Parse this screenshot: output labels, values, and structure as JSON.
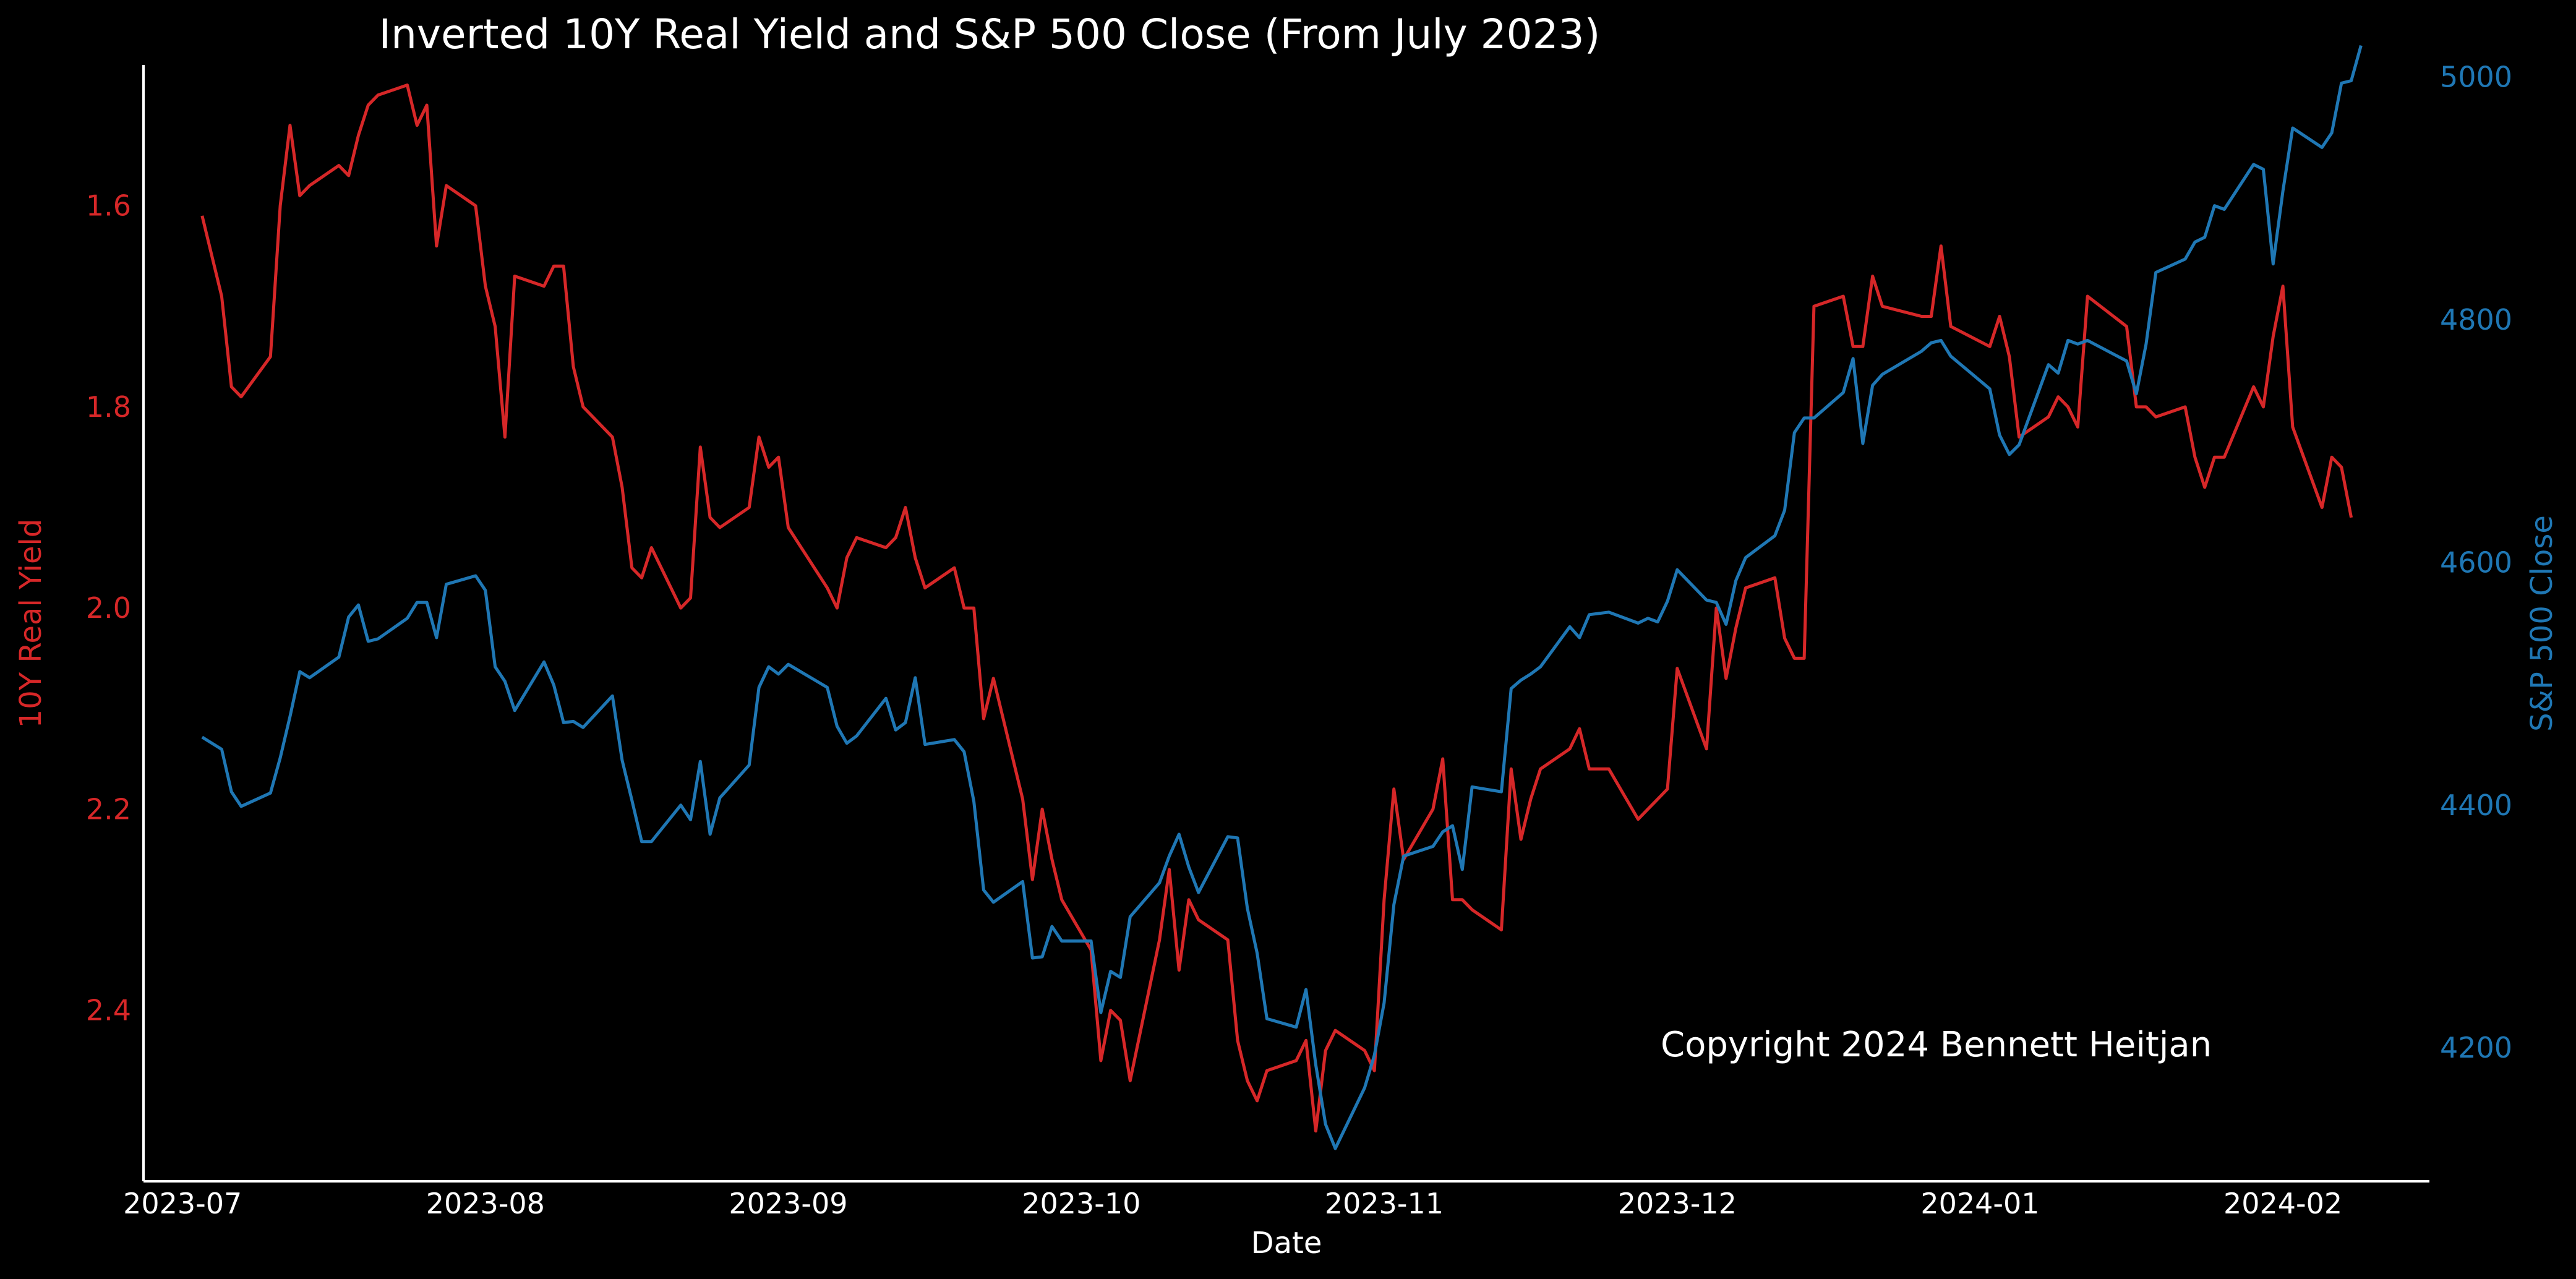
{
  "chart_data": {
    "type": "line",
    "title": "Inverted 10Y Real Yield and S&P 500 Close (From July 2023)",
    "xlabel": "Date",
    "y_left_label": "10Y Real Yield",
    "y_right_label": "S&P 500 Close",
    "annotation": "Copyright 2024 Bennett Heitjan",
    "x_range": [
      "2023-06-27",
      "2024-02-16"
    ],
    "y_left_range": [
      2.57,
      1.46
    ],
    "y_left_inverted": true,
    "y_right_range": [
      4090,
      5010
    ],
    "x_ticks": [
      "2023-07",
      "2023-08",
      "2023-09",
      "2023-10",
      "2023-11",
      "2023-12",
      "2024-01",
      "2024-02"
    ],
    "y_left_ticks": [
      "1.6",
      "1.8",
      "2.0",
      "2.2",
      "2.4"
    ],
    "y_right_ticks": [
      "4200",
      "4400",
      "4600",
      "4800",
      "5000"
    ],
    "grid": false,
    "colors": {
      "real_yield": "#d62728",
      "sp500": "#1f77b4",
      "background": "#000000",
      "text": "#ffffff"
    },
    "series": [
      {
        "name": "10Y Real Yield",
        "axis": "left",
        "x": [
          "2023-07-03",
          "2023-07-05",
          "2023-07-06",
          "2023-07-07",
          "2023-07-10",
          "2023-07-11",
          "2023-07-12",
          "2023-07-13",
          "2023-07-14",
          "2023-07-17",
          "2023-07-18",
          "2023-07-19",
          "2023-07-20",
          "2023-07-21",
          "2023-07-24",
          "2023-07-25",
          "2023-07-26",
          "2023-07-27",
          "2023-07-28",
          "2023-07-31",
          "2023-08-01",
          "2023-08-02",
          "2023-08-03",
          "2023-08-04",
          "2023-08-07",
          "2023-08-08",
          "2023-08-09",
          "2023-08-10",
          "2023-08-11",
          "2023-08-14",
          "2023-08-15",
          "2023-08-16",
          "2023-08-17",
          "2023-08-18",
          "2023-08-21",
          "2023-08-22",
          "2023-08-23",
          "2023-08-24",
          "2023-08-25",
          "2023-08-28",
          "2023-08-29",
          "2023-08-30",
          "2023-08-31",
          "2023-09-01",
          "2023-09-05",
          "2023-09-06",
          "2023-09-07",
          "2023-09-08",
          "2023-09-11",
          "2023-09-12",
          "2023-09-13",
          "2023-09-14",
          "2023-09-15",
          "2023-09-18",
          "2023-09-19",
          "2023-09-20",
          "2023-09-21",
          "2023-09-22",
          "2023-09-25",
          "2023-09-26",
          "2023-09-27",
          "2023-09-28",
          "2023-09-29",
          "2023-10-02",
          "2023-10-03",
          "2023-10-04",
          "2023-10-05",
          "2023-10-06",
          "2023-10-09",
          "2023-10-10",
          "2023-10-11",
          "2023-10-12",
          "2023-10-13",
          "2023-10-16",
          "2023-10-17",
          "2023-10-18",
          "2023-10-19",
          "2023-10-20",
          "2023-10-23",
          "2023-10-24",
          "2023-10-25",
          "2023-10-26",
          "2023-10-27",
          "2023-10-30",
          "2023-10-31",
          "2023-11-01",
          "2023-11-02",
          "2023-11-03",
          "2023-11-06",
          "2023-11-07",
          "2023-11-08",
          "2023-11-09",
          "2023-11-10",
          "2023-11-13",
          "2023-11-14",
          "2023-11-15",
          "2023-11-16",
          "2023-11-17",
          "2023-11-20",
          "2023-11-21",
          "2023-11-22",
          "2023-11-24",
          "2023-11-27",
          "2023-11-28",
          "2023-11-29",
          "2023-11-30",
          "2023-12-01",
          "2023-12-04",
          "2023-12-05",
          "2023-12-06",
          "2023-12-07",
          "2023-12-08",
          "2023-12-11",
          "2023-12-12",
          "2023-12-13",
          "2023-12-14",
          "2023-12-15",
          "2023-12-18",
          "2023-12-19",
          "2023-12-20",
          "2023-12-21",
          "2023-12-22",
          "2023-12-26",
          "2023-12-27",
          "2023-12-28",
          "2023-12-29",
          "2024-01-02",
          "2024-01-03",
          "2024-01-04",
          "2024-01-05",
          "2024-01-08",
          "2024-01-09",
          "2024-01-10",
          "2024-01-11",
          "2024-01-12",
          "2024-01-16",
          "2024-01-17",
          "2024-01-18",
          "2024-01-19",
          "2024-01-22",
          "2024-01-23",
          "2024-01-24",
          "2024-01-25",
          "2024-01-26",
          "2024-01-29",
          "2024-01-30",
          "2024-01-31",
          "2024-02-01",
          "2024-02-02",
          "2024-02-05",
          "2024-02-06",
          "2024-02-07",
          "2024-02-08"
        ],
        "values": [
          1.61,
          1.69,
          1.78,
          1.79,
          1.75,
          1.6,
          1.52,
          1.59,
          1.58,
          1.56,
          1.57,
          1.53,
          1.5,
          1.49,
          1.48,
          1.52,
          1.5,
          1.64,
          1.58,
          1.6,
          1.68,
          1.72,
          1.83,
          1.67,
          1.68,
          1.66,
          1.66,
          1.76,
          1.8,
          1.83,
          1.88,
          1.96,
          1.97,
          1.94,
          2.0,
          1.99,
          1.84,
          1.91,
          1.92,
          1.9,
          1.83,
          1.86,
          1.85,
          1.92,
          1.98,
          2.0,
          1.95,
          1.93,
          1.94,
          1.93,
          1.9,
          1.95,
          1.98,
          1.96,
          2.0,
          2.0,
          2.11,
          2.07,
          2.19,
          2.27,
          2.2,
          2.25,
          2.29,
          2.34,
          2.45,
          2.4,
          2.41,
          2.47,
          2.33,
          2.26,
          2.36,
          2.29,
          2.31,
          2.33,
          2.43,
          2.47,
          2.49,
          2.46,
          2.45,
          2.43,
          2.52,
          2.44,
          2.42,
          2.44,
          2.46,
          2.29,
          2.18,
          2.25,
          2.2,
          2.15,
          2.29,
          2.29,
          2.3,
          2.32,
          2.16,
          2.23,
          2.19,
          2.16,
          2.14,
          2.12,
          2.16,
          2.16,
          2.21,
          2.2,
          2.19,
          2.18,
          2.06,
          2.14,
          2.0,
          2.07,
          2.02,
          1.98,
          1.97,
          2.03,
          2.05,
          2.05,
          1.7,
          1.69,
          1.74,
          1.74,
          1.67,
          1.7,
          1.71,
          1.71,
          1.64,
          1.72,
          1.74,
          1.71,
          1.75,
          1.83,
          1.81,
          1.79,
          1.8,
          1.82,
          1.69,
          1.72,
          1.8,
          1.8,
          1.81,
          1.8,
          1.85,
          1.88,
          1.85,
          1.85,
          1.78,
          1.8,
          1.73,
          1.68,
          1.82,
          1.9,
          1.85,
          1.86,
          1.91
        ]
      },
      {
        "name": "S&P 500 Close",
        "axis": "right",
        "x": [
          "2023-07-03",
          "2023-07-05",
          "2023-07-06",
          "2023-07-07",
          "2023-07-10",
          "2023-07-11",
          "2023-07-12",
          "2023-07-13",
          "2023-07-14",
          "2023-07-17",
          "2023-07-18",
          "2023-07-19",
          "2023-07-20",
          "2023-07-21",
          "2023-07-24",
          "2023-07-25",
          "2023-07-26",
          "2023-07-27",
          "2023-07-28",
          "2023-07-31",
          "2023-08-01",
          "2023-08-02",
          "2023-08-03",
          "2023-08-04",
          "2023-08-07",
          "2023-08-08",
          "2023-08-09",
          "2023-08-10",
          "2023-08-11",
          "2023-08-14",
          "2023-08-15",
          "2023-08-16",
          "2023-08-17",
          "2023-08-18",
          "2023-08-21",
          "2023-08-22",
          "2023-08-23",
          "2023-08-24",
          "2023-08-25",
          "2023-08-28",
          "2023-08-29",
          "2023-08-30",
          "2023-08-31",
          "2023-09-01",
          "2023-09-05",
          "2023-09-06",
          "2023-09-07",
          "2023-09-08",
          "2023-09-11",
          "2023-09-12",
          "2023-09-13",
          "2023-09-14",
          "2023-09-15",
          "2023-09-18",
          "2023-09-19",
          "2023-09-20",
          "2023-09-21",
          "2023-09-22",
          "2023-09-25",
          "2023-09-26",
          "2023-09-27",
          "2023-09-28",
          "2023-09-29",
          "2023-10-02",
          "2023-10-03",
          "2023-10-04",
          "2023-10-05",
          "2023-10-06",
          "2023-10-09",
          "2023-10-10",
          "2023-10-11",
          "2023-10-12",
          "2023-10-13",
          "2023-10-16",
          "2023-10-17",
          "2023-10-18",
          "2023-10-19",
          "2023-10-20",
          "2023-10-23",
          "2023-10-24",
          "2023-10-25",
          "2023-10-26",
          "2023-10-27",
          "2023-10-30",
          "2023-10-31",
          "2023-11-01",
          "2023-11-02",
          "2023-11-03",
          "2023-11-06",
          "2023-11-07",
          "2023-11-08",
          "2023-11-09",
          "2023-11-10",
          "2023-11-13",
          "2023-11-14",
          "2023-11-15",
          "2023-11-16",
          "2023-11-17",
          "2023-11-20",
          "2023-11-21",
          "2023-11-22",
          "2023-11-24",
          "2023-11-27",
          "2023-11-28",
          "2023-11-29",
          "2023-11-30",
          "2023-12-01",
          "2023-12-04",
          "2023-12-05",
          "2023-12-06",
          "2023-12-07",
          "2023-12-08",
          "2023-12-11",
          "2023-12-12",
          "2023-12-13",
          "2023-12-14",
          "2023-12-15",
          "2023-12-18",
          "2023-12-19",
          "2023-12-20",
          "2023-12-21",
          "2023-12-22",
          "2023-12-26",
          "2023-12-27",
          "2023-12-28",
          "2023-12-29",
          "2024-01-02",
          "2024-01-03",
          "2024-01-04",
          "2024-01-05",
          "2024-01-08",
          "2024-01-09",
          "2024-01-10",
          "2024-01-11",
          "2024-01-12",
          "2024-01-16",
          "2024-01-17",
          "2024-01-18",
          "2024-01-19",
          "2024-01-22",
          "2024-01-23",
          "2024-01-24",
          "2024-01-25",
          "2024-01-26",
          "2024-01-29",
          "2024-01-30",
          "2024-01-31",
          "2024-02-01",
          "2024-02-02",
          "2024-02-05",
          "2024-02-06",
          "2024-02-07",
          "2024-02-08",
          "2024-02-09"
        ],
        "values": [
          4456,
          4446,
          4411,
          4399,
          4410,
          4439,
          4473,
          4510,
          4505,
          4522,
          4555,
          4565,
          4535,
          4537,
          4554,
          4567,
          4567,
          4538,
          4582,
          4589,
          4577,
          4514,
          4502,
          4478,
          4518,
          4499,
          4468,
          4469,
          4464,
          4490,
          4437,
          4404,
          4370,
          4370,
          4400,
          4388,
          4436,
          4376,
          4406,
          4433,
          4497,
          4514,
          4508,
          4516,
          4497,
          4465,
          4451,
          4457,
          4488,
          4462,
          4468,
          4505,
          4450,
          4454,
          4444,
          4403,
          4330,
          4320,
          4337,
          4274,
          4275,
          4300,
          4288,
          4288,
          4229,
          4263,
          4258,
          4308,
          4336,
          4358,
          4376,
          4349,
          4328,
          4374,
          4373,
          4315,
          4278,
          4224,
          4217,
          4248,
          4186,
          4137,
          4117,
          4167,
          4194,
          4237,
          4318,
          4358,
          4366,
          4378,
          4383,
          4347,
          4415,
          4411,
          4496,
          4503,
          4508,
          4514,
          4547,
          4538,
          4557,
          4559,
          4550,
          4554,
          4551,
          4568,
          4594,
          4569,
          4567,
          4549,
          4585,
          4604,
          4622,
          4643,
          4707,
          4719,
          4719,
          4740,
          4768,
          4698,
          4746,
          4755,
          4774,
          4781,
          4783,
          4770,
          4743,
          4705,
          4689,
          4697,
          4763,
          4756,
          4783,
          4780,
          4783,
          4766,
          4739,
          4780,
          4839,
          4850,
          4864,
          4868,
          4894,
          4891,
          4928,
          4924,
          4846,
          4906,
          4958,
          4942,
          4954,
          4995,
          4997,
          5026
        ]
      }
    ]
  }
}
